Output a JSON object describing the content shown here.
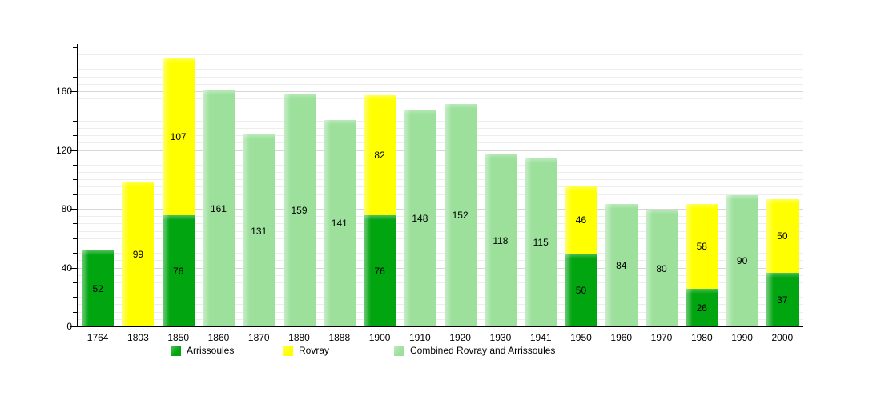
{
  "chart_data": {
    "type": "bar",
    "stacked": true,
    "title": "",
    "xlabel": "",
    "ylabel": "",
    "categories": [
      "1764",
      "1803",
      "1850",
      "1860",
      "1870",
      "1880",
      "1888",
      "1900",
      "1910",
      "1920",
      "1930",
      "1941",
      "1950",
      "1960",
      "1970",
      "1980",
      "1990",
      "2000"
    ],
    "series": [
      {
        "name": "Arrissoules",
        "color": "#00a510",
        "values": [
          52,
          null,
          76,
          null,
          null,
          null,
          null,
          76,
          null,
          null,
          null,
          null,
          50,
          null,
          null,
          26,
          null,
          37
        ]
      },
      {
        "name": "Rovray",
        "color": "#ffff00",
        "values": [
          null,
          99,
          107,
          null,
          null,
          null,
          null,
          82,
          null,
          null,
          null,
          null,
          46,
          null,
          null,
          58,
          null,
          50
        ]
      },
      {
        "name": "Combined Rovray and Arrissoules",
        "color": "#9ce09c",
        "values": [
          null,
          null,
          null,
          161,
          131,
          159,
          141,
          null,
          148,
          152,
          118,
          115,
          null,
          84,
          80,
          null,
          90,
          null
        ]
      }
    ],
    "ylim": [
      0,
      192
    ],
    "yticks_labeled": [
      0,
      40,
      80,
      120,
      160
    ],
    "ytick_minor_step": 10,
    "grid_step": 5,
    "grid_on": true,
    "legend_position": "bottom",
    "value_labels": "inside-center"
  },
  "legend": {
    "items": [
      {
        "label": "Arrissoules",
        "color": "#00a510"
      },
      {
        "label": "Rovray",
        "color": "#ffff00"
      },
      {
        "label": "Combined Rovray and Arrissoules",
        "color": "#9ce09c"
      }
    ]
  },
  "colors": {
    "background": "#ffffff",
    "axis": "#000000",
    "grid_minor": "#ededed",
    "grid_major": "#d6d6d6",
    "text": "#000000"
  }
}
